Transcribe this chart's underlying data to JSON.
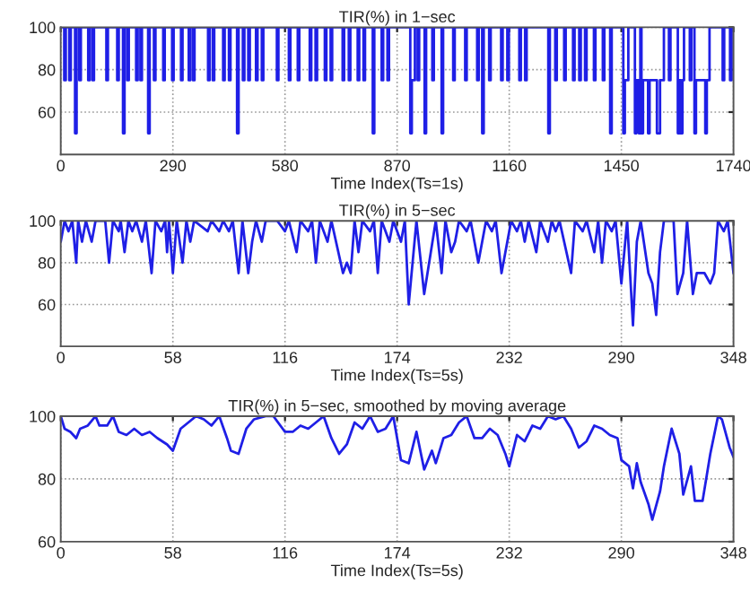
{
  "chart_data": [
    {
      "type": "step",
      "title": "TIR(%) in 1−sec",
      "xlabel": "Time Index(Ts=1s)",
      "color": "#1f1fe6",
      "grid": true,
      "xlim": [
        0,
        1740
      ],
      "xticks": [
        0,
        290,
        580,
        870,
        1160,
        1450,
        1740
      ],
      "ylim": [
        40,
        100
      ],
      "yticks": [
        60,
        80,
        100
      ],
      "x": [
        0,
        9,
        13,
        22,
        26,
        37,
        41,
        48,
        52,
        71,
        75,
        82,
        86,
        118,
        122,
        146,
        150,
        161,
        165,
        172,
        176,
        195,
        199,
        206,
        210,
        226,
        230,
        241,
        245,
        265,
        269,
        288,
        292,
        311,
        315,
        331,
        335,
        342,
        346,
        381,
        385,
        393,
        397,
        420,
        424,
        435,
        439,
        456,
        460,
        471,
        475,
        485,
        489,
        505,
        509,
        520,
        524,
        559,
        563,
        590,
        594,
        613,
        617,
        644,
        648,
        659,
        663,
        683,
        687,
        698,
        702,
        729,
        733,
        745,
        749,
        768,
        772,
        783,
        787,
        807,
        811,
        830,
        834,
        845,
        849,
        904,
        908,
        916,
        923,
        927,
        941,
        945,
        961,
        965,
        985,
        989,
        1015,
        1019,
        1046,
        1050,
        1077,
        1081,
        1090,
        1094,
        1108,
        1112,
        1139,
        1143,
        1155,
        1159,
        1186,
        1190,
        1201,
        1205,
        1261,
        1265,
        1279,
        1283,
        1302,
        1306,
        1325,
        1329,
        1341,
        1345,
        1356,
        1360,
        1379,
        1383,
        1402,
        1406,
        1421,
        1425,
        1455,
        1459,
        1468,
        1485,
        1489,
        1495,
        1499,
        1502,
        1506,
        1519,
        1523,
        1542,
        1550,
        1560,
        1573,
        1577,
        1596,
        1600,
        1604,
        1608,
        1612,
        1627,
        1631,
        1639,
        1643,
        1667,
        1671,
        1678,
        1712,
        1716,
        1731,
        1735,
        1740
      ],
      "values": [
        100,
        75,
        100,
        75,
        100,
        50,
        100,
        75,
        100,
        75,
        100,
        75,
        100,
        75,
        100,
        75,
        100,
        50,
        100,
        75,
        100,
        75,
        100,
        75,
        100,
        50,
        100,
        75,
        100,
        75,
        100,
        75,
        100,
        75,
        100,
        75,
        100,
        75,
        100,
        75,
        100,
        75,
        100,
        75,
        100,
        75,
        100,
        50,
        100,
        75,
        100,
        75,
        100,
        75,
        100,
        75,
        100,
        75,
        100,
        75,
        100,
        75,
        100,
        75,
        100,
        75,
        100,
        75,
        100,
        75,
        100,
        75,
        100,
        75,
        100,
        75,
        100,
        75,
        100,
        50,
        100,
        75,
        100,
        75,
        100,
        50,
        75,
        100,
        75,
        100,
        50,
        100,
        75,
        100,
        50,
        100,
        75,
        100,
        75,
        100,
        75,
        100,
        50,
        100,
        75,
        100,
        75,
        100,
        75,
        100,
        75,
        100,
        75,
        100,
        50,
        100,
        75,
        100,
        75,
        100,
        75,
        100,
        75,
        100,
        75,
        100,
        75,
        100,
        75,
        100,
        50,
        100,
        50,
        75,
        100,
        50,
        75,
        50,
        100,
        50,
        75,
        50,
        75,
        50,
        75,
        100,
        75,
        100,
        50,
        75,
        50,
        75,
        100,
        75,
        100,
        50,
        75,
        50,
        75,
        100,
        75,
        100,
        75,
        100,
        100
      ]
    },
    {
      "type": "line",
      "title": "TIR(%) in 5−sec",
      "xlabel": "Time Index(Ts=5s)",
      "color": "#1f1fe6",
      "grid": true,
      "xlim": [
        0,
        348
      ],
      "xticks": [
        0,
        58,
        116,
        174,
        232,
        290,
        348
      ],
      "ylim": [
        40,
        100
      ],
      "yticks": [
        60,
        80,
        100
      ],
      "x": [
        0,
        2,
        4,
        6,
        8,
        9,
        11,
        13,
        16,
        18,
        23,
        25,
        27,
        30,
        31,
        33,
        35,
        37,
        39,
        42,
        44,
        47,
        49,
        52,
        54,
        55,
        56,
        58,
        60,
        63,
        65,
        67,
        69,
        76,
        78,
        82,
        84,
        87,
        89,
        92,
        94,
        97,
        99,
        101,
        104,
        106,
        112,
        116,
        118,
        122,
        124,
        128,
        130,
        132,
        134,
        138,
        140,
        146,
        148,
        150,
        152,
        154,
        156,
        160,
        162,
        164,
        166,
        170,
        172,
        176,
        178,
        180,
        184,
        188,
        194,
        197,
        199,
        202,
        204,
        206,
        210,
        212,
        216,
        220,
        223,
        225,
        228,
        233,
        236,
        238,
        240,
        242,
        246,
        248,
        252,
        254,
        256,
        258,
        264,
        266,
        270,
        272,
        276,
        278,
        280,
        282,
        285,
        287,
        290,
        293,
        296,
        298,
        300,
        304,
        306,
        308,
        310,
        312,
        317,
        319,
        322,
        324,
        327,
        329,
        333,
        336,
        338,
        340,
        343,
        345,
        348
      ],
      "values": [
        90,
        100,
        95,
        100,
        80,
        100,
        90,
        100,
        90,
        100,
        100,
        80,
        100,
        95,
        100,
        85,
        100,
        95,
        100,
        90,
        100,
        75,
        100,
        95,
        100,
        85,
        100,
        75,
        100,
        80,
        100,
        90,
        100,
        95,
        100,
        95,
        100,
        95,
        100,
        75,
        100,
        75,
        90,
        100,
        90,
        100,
        100,
        95,
        100,
        85,
        100,
        95,
        100,
        80,
        100,
        90,
        100,
        75,
        80,
        75,
        100,
        85,
        100,
        95,
        100,
        75,
        100,
        90,
        100,
        90,
        100,
        60,
        100,
        65,
        100,
        75,
        100,
        85,
        90,
        100,
        95,
        100,
        80,
        100,
        95,
        100,
        75,
        100,
        95,
        100,
        90,
        100,
        85,
        100,
        90,
        100,
        95,
        100,
        75,
        100,
        95,
        100,
        85,
        100,
        80,
        100,
        95,
        100,
        70,
        100,
        50,
        90,
        100,
        75,
        70,
        55,
        85,
        100,
        100,
        65,
        75,
        100,
        65,
        75,
        75,
        70,
        75,
        100,
        95,
        100,
        75
      ]
    },
    {
      "type": "line",
      "title": "TIR(%) in 5−sec, smoothed by moving average",
      "xlabel": "Time Index(Ts=5s)",
      "color": "#1f1fe6",
      "grid": true,
      "xlim": [
        0,
        348
      ],
      "xticks": [
        0,
        58,
        116,
        174,
        232,
        290,
        348
      ],
      "ylim": [
        60,
        100
      ],
      "yticks": [
        60,
        80,
        100
      ],
      "x": [
        0,
        2,
        5,
        8,
        10,
        14,
        18,
        20,
        24,
        27,
        30,
        34,
        38,
        42,
        46,
        50,
        55,
        58,
        62,
        66,
        70,
        74,
        78,
        82,
        86,
        88,
        92,
        96,
        100,
        106,
        110,
        116,
        120,
        124,
        128,
        132,
        136,
        140,
        144,
        148,
        152,
        156,
        160,
        164,
        168,
        172,
        176,
        180,
        184,
        188,
        192,
        194,
        198,
        202,
        206,
        210,
        214,
        218,
        222,
        226,
        230,
        232,
        236,
        240,
        244,
        248,
        252,
        256,
        260,
        264,
        268,
        272,
        276,
        280,
        284,
        288,
        290,
        294,
        296,
        298,
        300,
        304,
        306,
        310,
        312,
        316,
        320,
        322,
        326,
        328,
        332,
        336,
        340,
        342,
        346,
        348
      ],
      "values": [
        100,
        96,
        95,
        93,
        96,
        97,
        100,
        97,
        97,
        100,
        95,
        94,
        96,
        94,
        95,
        93,
        91,
        89,
        96,
        98,
        100,
        99,
        97,
        100,
        93,
        89,
        88,
        96,
        99,
        100,
        100,
        95,
        95,
        97,
        96,
        98,
        100,
        93,
        88,
        91,
        98,
        96,
        100,
        95,
        96,
        100,
        86,
        85,
        95,
        83,
        89,
        85,
        93,
        94,
        98,
        100,
        93,
        93,
        96,
        94,
        88,
        84,
        94,
        92,
        97,
        96,
        100,
        99,
        100,
        96,
        90,
        92,
        97,
        96,
        94,
        93,
        86,
        84,
        77,
        85,
        79,
        72,
        67,
        76,
        84,
        96,
        88,
        75,
        84,
        73,
        73,
        88,
        100,
        99,
        90,
        87
      ]
    }
  ]
}
